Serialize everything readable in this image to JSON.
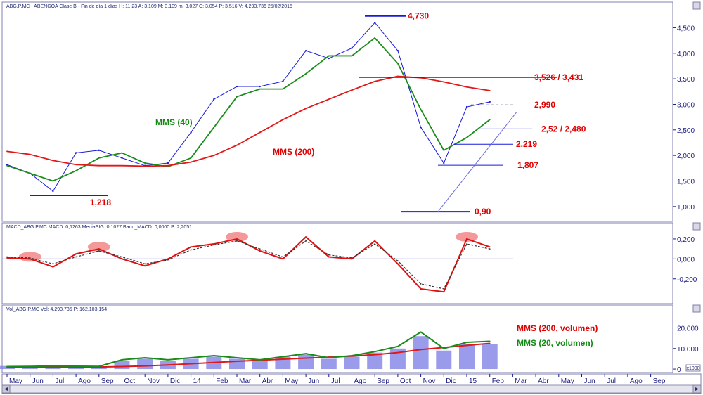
{
  "headers": {
    "price": "ABG.P.MC - ABENGOA Clase B - Fin de día 1 días  H: 11:23  A: 3,109  M: 3,109  m: 3,027  C: 3,054  P: 3,516  V: 4.293.736  25/02/2015",
    "macd": "MACD_ABG.P.MC  MACD: 0,1263  MediaSIG: 0,1027  Band_MACD: 0,0000  P: 2,2051",
    "vol": "Vol_ABG.P.MC  Vol: 4.293.735  P: 162.103.154"
  },
  "x_ticks": [
    "May",
    "Jun",
    "Jul",
    "Ago",
    "Sep",
    "Oct",
    "Nov",
    "Dic",
    "14",
    "Feb",
    "Mar",
    "Abr",
    "May",
    "Jun",
    "Jul",
    "Ago",
    "Sep",
    "Oct",
    "Nov",
    "Dic",
    "15",
    "Feb",
    "Mar",
    "Abr",
    "May",
    "Jun",
    "Jul",
    "Ago",
    "Sep"
  ],
  "colors": {
    "price": "#1a1add",
    "mms40": "#1a8c1a",
    "mms200": "#e01818",
    "macd": "#e01010",
    "signal": "#333333",
    "accent": "#e00000",
    "axis": "#1a1a80"
  },
  "chart_data": [
    {
      "type": "line",
      "title": "ABG.P.MC - ABENGOA Clase B",
      "ylim": [
        0.75,
        4.85
      ],
      "y_ticks": [
        "1,000",
        "1,500",
        "2,000",
        "2,500",
        "3,000",
        "3,500",
        "4,000",
        "4,500"
      ],
      "y_tick_values": [
        1.0,
        1.5,
        2.0,
        2.5,
        3.0,
        3.5,
        4.0,
        4.5
      ],
      "x": [
        "May",
        "Jun",
        "Jul",
        "Ago",
        "Sep",
        "Oct",
        "Nov",
        "Dic",
        "14",
        "Feb",
        "Mar",
        "Abr",
        "May",
        "Jun",
        "Jul",
        "Ago",
        "Sep",
        "Oct",
        "Nov",
        "Dic",
        "15",
        "Feb"
      ],
      "series": [
        {
          "name": "Precio",
          "values": [
            1.82,
            1.65,
            1.3,
            2.05,
            2.1,
            1.95,
            1.8,
            1.85,
            2.45,
            3.1,
            3.35,
            3.35,
            3.45,
            4.05,
            3.9,
            4.1,
            4.6,
            4.05,
            2.55,
            1.85,
            2.95,
            3.05
          ]
        },
        {
          "name": "MMS (40)",
          "values": [
            1.8,
            1.65,
            1.5,
            1.7,
            1.95,
            2.05,
            1.85,
            1.78,
            1.95,
            2.55,
            3.15,
            3.3,
            3.3,
            3.6,
            3.95,
            3.95,
            4.3,
            3.8,
            2.9,
            2.1,
            2.35,
            2.7
          ]
        },
        {
          "name": "MMS (200)",
          "values": [
            2.08,
            2.02,
            1.9,
            1.82,
            1.8,
            1.8,
            1.79,
            1.8,
            1.87,
            2.0,
            2.2,
            2.45,
            2.7,
            2.92,
            3.1,
            3.28,
            3.45,
            3.55,
            3.52,
            3.44,
            3.34,
            3.27
          ]
        }
      ],
      "annotations": [
        {
          "label": "4,730",
          "value": 4.73
        },
        {
          "label": "3,526 / 3,431",
          "value": 3.526
        },
        {
          "label": "2,990",
          "value": 2.99
        },
        {
          "label": "2,52 / 2,480",
          "value": 2.52
        },
        {
          "label": "2,219",
          "value": 2.219
        },
        {
          "label": "1,807",
          "value": 1.807
        },
        {
          "label": "1,218",
          "value": 1.218
        },
        {
          "label": "0,90",
          "value": 0.9
        }
      ],
      "legend": [
        {
          "label": "MMS (40)",
          "color": "#1a8c1a"
        },
        {
          "label": "MMS (200)",
          "color": "#e01818"
        }
      ]
    },
    {
      "type": "line",
      "title": "MACD_ABG.P.MC",
      "ylim": [
        -0.42,
        0.27
      ],
      "y_ticks": [
        "0,200",
        "0,000",
        "-0,200"
      ],
      "y_tick_values": [
        0.2,
        0.0,
        -0.2
      ],
      "x": [
        "May",
        "Jun",
        "Jul",
        "Ago",
        "Sep",
        "Oct",
        "Nov",
        "Dic",
        "14",
        "Feb",
        "Mar",
        "Abr",
        "May",
        "Jun",
        "Jul",
        "Ago",
        "Sep",
        "Oct",
        "Nov",
        "Dic",
        "15",
        "Feb"
      ],
      "series": [
        {
          "name": "MACD",
          "values": [
            0.01,
            0.0,
            -0.08,
            0.05,
            0.1,
            0.0,
            -0.07,
            0.0,
            0.12,
            0.15,
            0.2,
            0.08,
            0.0,
            0.22,
            0.02,
            0.0,
            0.18,
            -0.05,
            -0.3,
            -0.33,
            0.2,
            0.12
          ]
        },
        {
          "name": "MediaSIG",
          "values": [
            0.02,
            0.01,
            -0.05,
            0.02,
            0.08,
            0.02,
            -0.05,
            -0.01,
            0.09,
            0.14,
            0.18,
            0.1,
            0.02,
            0.18,
            0.04,
            0.01,
            0.15,
            -0.02,
            -0.25,
            -0.3,
            0.15,
            0.1
          ]
        }
      ],
      "highlights": [
        "Mar",
        "Jun",
        "Sep",
        "15"
      ]
    },
    {
      "type": "bar",
      "title": "Vol_ABG.P.MC",
      "ylim": [
        -1,
        27
      ],
      "y_ticks": [
        "20.000",
        "10.000",
        "0"
      ],
      "y_tick_values": [
        20,
        10,
        0
      ],
      "unit_label": "x1000",
      "x": [
        "May",
        "Jun",
        "Jul",
        "Ago",
        "Sep",
        "Oct",
        "Nov",
        "Dic",
        "14",
        "Feb",
        "Mar",
        "Abr",
        "May",
        "Jun",
        "Jul",
        "Ago",
        "Sep",
        "Oct",
        "Nov",
        "Dic",
        "15",
        "Feb"
      ],
      "series": [
        {
          "name": "Volumen",
          "values": [
            1.5,
            1.5,
            1.8,
            1.5,
            1.2,
            4,
            5,
            4,
            5,
            6,
            5,
            4,
            6,
            7,
            5,
            6,
            8,
            10,
            16,
            9,
            12,
            12
          ]
        },
        {
          "name": "MMS (200, volumen)",
          "values": [
            0.9,
            0.9,
            0.9,
            0.9,
            1.0,
            1.2,
            1.5,
            2.0,
            2.6,
            3.2,
            3.8,
            4.3,
            4.8,
            5.3,
            5.8,
            6.3,
            7.0,
            8.0,
            9.5,
            10.5,
            11.5,
            12.5
          ]
        },
        {
          "name": "MMS (20, volumen)",
          "values": [
            1.2,
            1.3,
            1.5,
            1.4,
            1.3,
            4.5,
            5.5,
            4.5,
            5.5,
            6.5,
            5.5,
            4.5,
            6.0,
            7.5,
            5.5,
            6.5,
            8.5,
            11,
            18,
            10,
            13,
            13.5
          ]
        }
      ],
      "legend": [
        {
          "label": "MMS (200, volumen)",
          "color": "#e01818"
        },
        {
          "label": "MMS (20, volumen)",
          "color": "#1a8c1a"
        }
      ]
    }
  ]
}
